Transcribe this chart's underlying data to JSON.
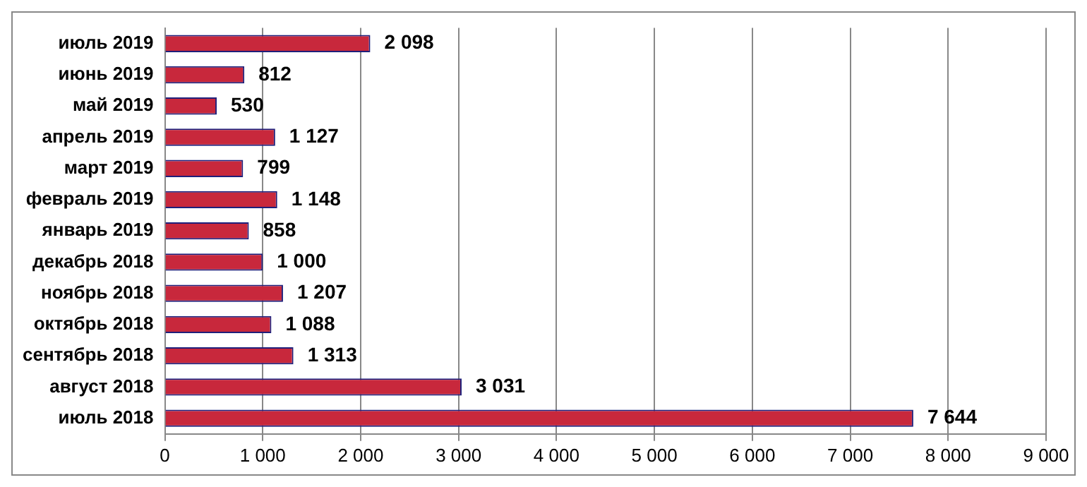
{
  "chart_data": {
    "type": "bar",
    "orientation": "horizontal",
    "categories": [
      "июль 2019",
      "июнь 2019",
      "май 2019",
      "апрель 2019",
      "март 2019",
      "февраль 2019",
      "январь 2019",
      "декабрь 2018",
      "ноябрь 2018",
      "октябрь 2018",
      "сентябрь 2018",
      "август 2018",
      "июль 2018"
    ],
    "values": [
      2098,
      812,
      530,
      1127,
      799,
      1148,
      858,
      1000,
      1207,
      1088,
      1313,
      3031,
      7644
    ],
    "value_labels": [
      "2 098",
      "812",
      "530",
      "1 127",
      "799",
      "1 148",
      "858",
      "1 000",
      "1 207",
      "1 088",
      "1 313",
      "3 031",
      "7 644"
    ],
    "color": "#c8283c",
    "xlim": [
      0,
      9000
    ],
    "xticks": [
      {
        "value": 0,
        "label": "0"
      },
      {
        "value": 1000,
        "label": "1 000"
      },
      {
        "value": 2000,
        "label": "2 000"
      },
      {
        "value": 3000,
        "label": "3 000"
      },
      {
        "value": 4000,
        "label": "4 000"
      },
      {
        "value": 5000,
        "label": "5 000"
      },
      {
        "value": 6000,
        "label": "6 000"
      },
      {
        "value": 7000,
        "label": "7 000"
      },
      {
        "value": 8000,
        "label": "8 000"
      },
      {
        "value": 9000,
        "label": "9 000"
      }
    ],
    "grid": "x",
    "legend": false
  }
}
